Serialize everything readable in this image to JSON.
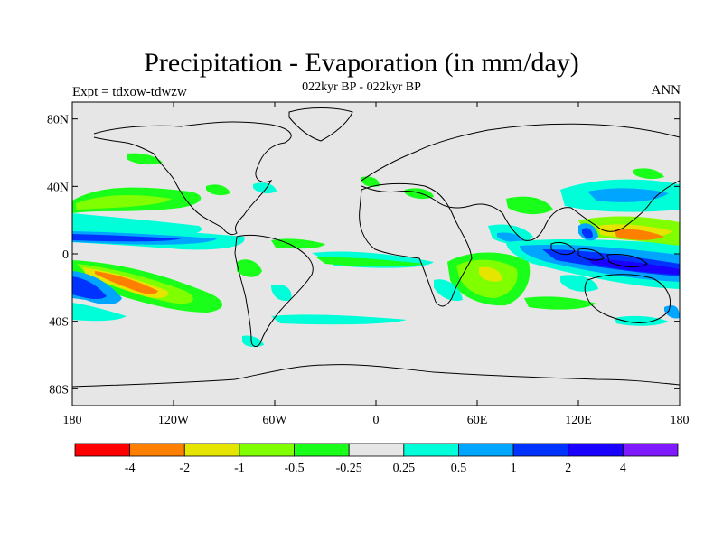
{
  "figure": {
    "title": "Precipitation - Evaporation (in mm/day)",
    "subtitle": "022kyr BP - 022kyr BP",
    "left_label": "Expt = tdxow-tdwzw",
    "right_label": "ANN"
  },
  "map": {
    "projection": "cylindrical-equidistant",
    "lon_range": [
      -180,
      180
    ],
    "lat_range": [
      -90,
      90
    ],
    "background_color": "#e6e6e6",
    "coastline_color": "#000000",
    "lat_ticks": [
      {
        "value": 80,
        "label": "80N"
      },
      {
        "value": 40,
        "label": "40N"
      },
      {
        "value": 0,
        "label": "0"
      },
      {
        "value": -40,
        "label": "40S"
      },
      {
        "value": -80,
        "label": "80S"
      }
    ],
    "lon_ticks": [
      {
        "value": -180,
        "label": "180"
      },
      {
        "value": -120,
        "label": "120W"
      },
      {
        "value": -60,
        "label": "60W"
      },
      {
        "value": 0,
        "label": "0"
      },
      {
        "value": 60,
        "label": "60E"
      },
      {
        "value": 120,
        "label": "120E"
      },
      {
        "value": 180,
        "label": "180"
      }
    ]
  },
  "colorbar": {
    "colors": [
      "#ff0000",
      "#ff7f00",
      "#e5e500",
      "#80ff00",
      "#19ff19",
      "#e6e6e6",
      "#00ffd9",
      "#00a5ff",
      "#0033ff",
      "#1900ff",
      "#7f1aff"
    ],
    "labels": [
      "-4",
      "-2",
      "-1",
      "-0.5",
      "-0.25",
      "0.25",
      "0.5",
      "1",
      "2",
      "4"
    ]
  },
  "chart_data": {
    "type": "heatmap",
    "title": "Precipitation - Evaporation (in mm/day)",
    "subtitle": "022kyr BP - 022kyr BP",
    "xlabel": "",
    "ylabel": "",
    "units": "mm/day",
    "xlim": [
      -180,
      180
    ],
    "ylim": [
      -90,
      90
    ],
    "contour_levels": [
      -4,
      -2,
      -1,
      -0.5,
      -0.25,
      0.25,
      0.5,
      1,
      2,
      4
    ],
    "anomaly_regions": [
      {
        "lon": [
          -180,
          -120
        ],
        "lat": [
          0,
          12
        ],
        "value": 1.5
      },
      {
        "lon": [
          -180,
          -110
        ],
        "lat": [
          20,
          30
        ],
        "value": -0.4
      },
      {
        "lon": [
          -170,
          -130
        ],
        "lat": [
          -30,
          -10
        ],
        "value": -2.5
      },
      {
        "lon": [
          -180,
          -150
        ],
        "lat": [
          -25,
          -15
        ],
        "value": 1.5
      },
      {
        "lon": [
          10,
          40
        ],
        "lat": [
          -25,
          -5
        ],
        "value": -0.5
      },
      {
        "lon": [
          80,
          130
        ],
        "lat": [
          -10,
          0
        ],
        "value": 2.0
      },
      {
        "lon": [
          120,
          170
        ],
        "lat": [
          5,
          15
        ],
        "value": -2.0
      },
      {
        "lon": [
          150,
          180
        ],
        "lat": [
          -10,
          -5
        ],
        "value": 2.0
      },
      {
        "lon": [
          -180,
          -130
        ],
        "lat": [
          -50,
          -35
        ],
        "value": 0.4
      }
    ]
  }
}
